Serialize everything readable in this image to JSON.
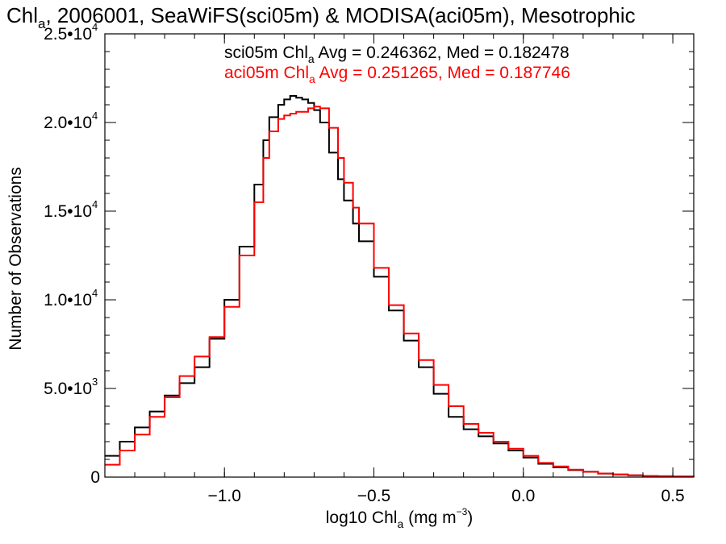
{
  "chart_data": {
    "type": "line",
    "title": {
      "pre": "Chl",
      "sub": "a",
      "post": ", 2006001, SeaWiFS(sci05m) & MODISA(aci05m), Mesotrophic"
    },
    "xlabel": {
      "pre": "log10 Chl",
      "sub": "a",
      "post": " (mg m",
      "sup": "−3",
      "close": ")"
    },
    "ylabel": "Number of Observations",
    "xlim": [
      -1.4,
      0.57
    ],
    "ylim": [
      0,
      25000
    ],
    "x_ticks": [
      {
        "value": -1.0,
        "label": "−1.0"
      },
      {
        "value": -0.5,
        "label": "−0.5"
      },
      {
        "value": 0.0,
        "label": "0.0"
      },
      {
        "value": 0.5,
        "label": "0.5"
      }
    ],
    "y_ticks": [
      {
        "value": 0,
        "mant": "0",
        "exp": ""
      },
      {
        "value": 5000,
        "mant": "5.0•10",
        "exp": "3"
      },
      {
        "value": 10000,
        "mant": "1.0•10",
        "exp": "4"
      },
      {
        "value": 15000,
        "mant": "1.5•10",
        "exp": "4"
      },
      {
        "value": 20000,
        "mant": "2.0•10",
        "exp": "4"
      },
      {
        "value": 25000,
        "mant": "2.5•10",
        "exp": "4"
      }
    ],
    "annotations": [
      {
        "pre": "sci05m Chl",
        "sub": "a",
        "post": " Avg = 0.246362, Med = 0.182478",
        "color": "#000000"
      },
      {
        "pre": "aci05m Chl",
        "sub": "a",
        "post": " Avg = 0.251265, Med = 0.187746",
        "color": "#ff0000"
      }
    ],
    "grid": false,
    "step": true,
    "series": [
      {
        "name": "sci05m",
        "color": "#000000",
        "x": [
          -1.4,
          -1.35,
          -1.3,
          -1.25,
          -1.2,
          -1.15,
          -1.1,
          -1.05,
          -1.0,
          -0.95,
          -0.9,
          -0.87,
          -0.85,
          -0.82,
          -0.8,
          -0.78,
          -0.76,
          -0.74,
          -0.72,
          -0.7,
          -0.68,
          -0.65,
          -0.62,
          -0.6,
          -0.57,
          -0.55,
          -0.5,
          -0.45,
          -0.4,
          -0.35,
          -0.3,
          -0.25,
          -0.2,
          -0.15,
          -0.1,
          -0.05,
          0.0,
          0.05,
          0.1,
          0.15,
          0.2,
          0.25,
          0.3,
          0.35,
          0.4,
          0.45,
          0.5,
          0.57
        ],
        "y": [
          1200,
          2000,
          2800,
          3700,
          4600,
          5300,
          6200,
          7800,
          10000,
          13000,
          16500,
          19000,
          20300,
          21000,
          21300,
          21500,
          21400,
          21300,
          21100,
          20700,
          20000,
          18300,
          16800,
          15600,
          14300,
          13300,
          11300,
          9400,
          7700,
          6200,
          4700,
          3400,
          2700,
          2300,
          1900,
          1500,
          1100,
          750,
          550,
          400,
          300,
          200,
          150,
          100,
          70,
          50,
          30,
          15
        ]
      },
      {
        "name": "aci05m",
        "color": "#ff0000",
        "x": [
          -1.4,
          -1.35,
          -1.3,
          -1.25,
          -1.2,
          -1.15,
          -1.1,
          -1.05,
          -1.0,
          -0.95,
          -0.9,
          -0.87,
          -0.85,
          -0.82,
          -0.8,
          -0.78,
          -0.76,
          -0.74,
          -0.72,
          -0.7,
          -0.68,
          -0.65,
          -0.62,
          -0.6,
          -0.57,
          -0.55,
          -0.5,
          -0.45,
          -0.4,
          -0.35,
          -0.3,
          -0.25,
          -0.2,
          -0.15,
          -0.1,
          -0.05,
          0.0,
          0.05,
          0.1,
          0.15,
          0.2,
          0.25,
          0.3,
          0.35,
          0.4,
          0.45,
          0.5,
          0.57
        ],
        "y": [
          700,
          1500,
          2400,
          3400,
          4500,
          5700,
          6800,
          7900,
          9600,
          12500,
          15500,
          18000,
          19500,
          20200,
          20400,
          20500,
          20600,
          20600,
          20800,
          20900,
          20800,
          19700,
          18000,
          16600,
          15200,
          14300,
          11800,
          9700,
          8100,
          6600,
          5200,
          4000,
          3000,
          2500,
          2000,
          1600,
          1200,
          800,
          600,
          420,
          300,
          200,
          150,
          100,
          70,
          50,
          30,
          15
        ]
      }
    ]
  }
}
